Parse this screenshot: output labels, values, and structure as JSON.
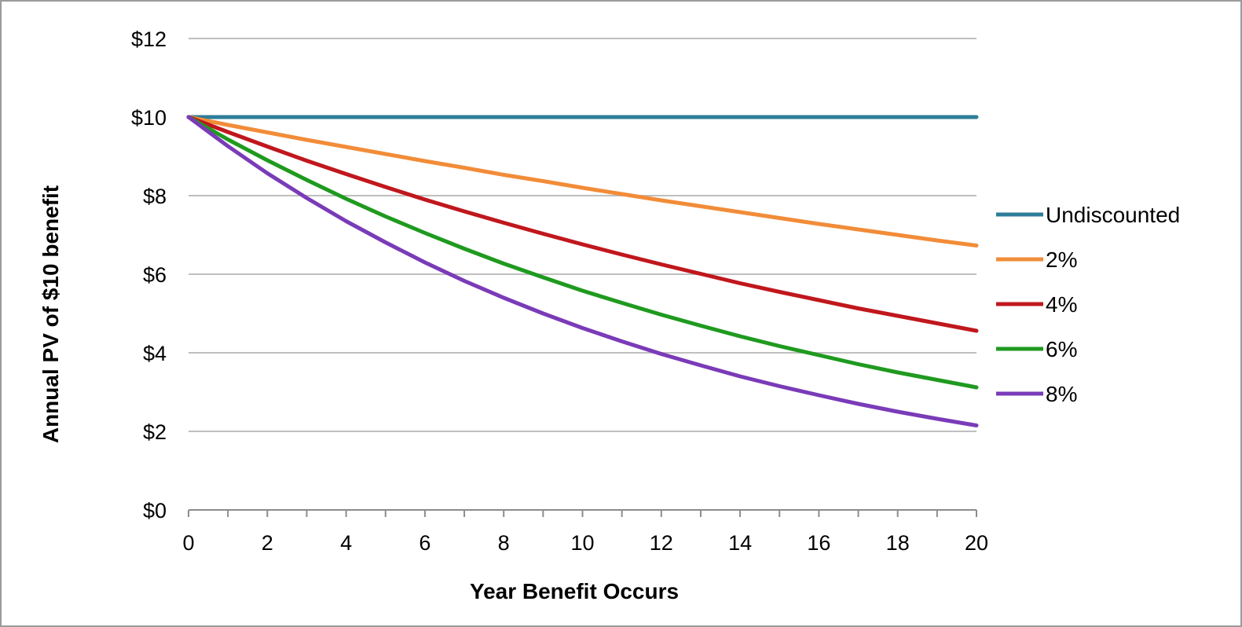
{
  "chart_data": {
    "type": "line",
    "title": "",
    "xlabel": "Year Benefit Occurs",
    "ylabel": "Annual PV  of $10 benefit",
    "xlim": [
      0,
      20
    ],
    "ylim": [
      0,
      12
    ],
    "x_ticks": [
      "0",
      "2",
      "4",
      "6",
      "8",
      "10",
      "12",
      "14",
      "16",
      "18",
      "20"
    ],
    "y_ticks": [
      "$0",
      "$2",
      "$4",
      "$6",
      "$8",
      "$10",
      "$12"
    ],
    "grid": "horizontal",
    "legend_position": "right",
    "x": [
      0,
      1,
      2,
      3,
      4,
      5,
      6,
      7,
      8,
      9,
      10,
      11,
      12,
      13,
      14,
      15,
      16,
      17,
      18,
      19,
      20
    ],
    "series": [
      {
        "name": "Undiscounted",
        "color": "#2e7d98",
        "values": [
          10,
          10,
          10,
          10,
          10,
          10,
          10,
          10,
          10,
          10,
          10,
          10,
          10,
          10,
          10,
          10,
          10,
          10,
          10,
          10,
          10
        ]
      },
      {
        "name": "2%",
        "color": "#f28c38",
        "values": [
          10,
          9.8,
          9.61,
          9.42,
          9.24,
          9.06,
          8.88,
          8.71,
          8.53,
          8.37,
          8.2,
          8.04,
          7.88,
          7.73,
          7.58,
          7.43,
          7.28,
          7.14,
          7.0,
          6.86,
          6.73
        ]
      },
      {
        "name": "4%",
        "color": "#c0171d",
        "values": [
          10,
          9.62,
          9.25,
          8.89,
          8.55,
          8.22,
          7.9,
          7.6,
          7.31,
          7.03,
          6.76,
          6.5,
          6.25,
          6.01,
          5.77,
          5.55,
          5.34,
          5.13,
          4.94,
          4.75,
          4.56
        ]
      },
      {
        "name": "6%",
        "color": "#1f9a1f",
        "values": [
          10,
          9.43,
          8.9,
          8.4,
          7.92,
          7.47,
          7.05,
          6.65,
          6.27,
          5.92,
          5.58,
          5.27,
          4.97,
          4.69,
          4.42,
          4.17,
          3.94,
          3.71,
          3.5,
          3.31,
          3.12
        ]
      },
      {
        "name": "8%",
        "color": "#7a3bb8",
        "values": [
          10,
          9.26,
          8.57,
          7.94,
          7.35,
          6.81,
          6.3,
          5.83,
          5.4,
          5.0,
          4.63,
          4.29,
          3.97,
          3.68,
          3.4,
          3.15,
          2.92,
          2.7,
          2.5,
          2.32,
          2.15
        ]
      }
    ]
  }
}
